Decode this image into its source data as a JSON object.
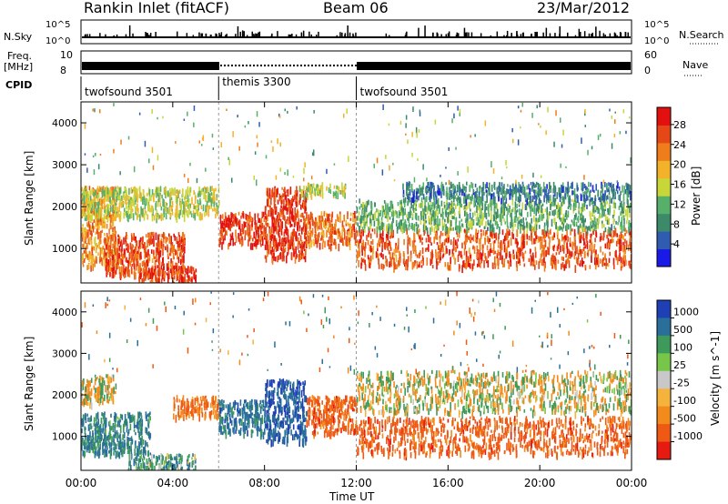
{
  "header": {
    "station": "Rankin Inlet (fitACF)",
    "beam": "Beam 06",
    "date": "23/Mar/2012"
  },
  "info_panels": {
    "nsky_label": "N.Sky",
    "nsky_top": "10^5",
    "nsky_bottom": "10^0",
    "nsearch_label": "N.Search",
    "nsearch_top": "10^5",
    "nsearch_bottom": "10^0",
    "freq_label": "Freq.",
    "freq_unit": "[MHz]",
    "freq_top": "10",
    "freq_bottom": "8",
    "nave_label": "Nave",
    "nave_top": "60",
    "nave_bottom": "0",
    "cpid_label": "CPID",
    "cpid_segments": [
      {
        "name": "twofsound 3501",
        "start_h": 0,
        "end_h": 6
      },
      {
        "name": "themis 3300",
        "start_h": 6,
        "end_h": 12
      },
      {
        "name": "twofsound 3501",
        "start_h": 12,
        "end_h": 24
      }
    ]
  },
  "axes": {
    "ylabel": "Slant Range [km]",
    "xlabel": "Time UT",
    "x_ticks": [
      "00:00",
      "04:00",
      "08:00",
      "12:00",
      "16:00",
      "20:00",
      "00:00"
    ],
    "y_ticks": [
      "1000",
      "2000",
      "3000",
      "4000"
    ]
  },
  "colorbars": {
    "power": {
      "label": "Power [dB]",
      "ticks": [
        "4",
        "8",
        "12",
        "16",
        "20",
        "24",
        "28"
      ],
      "colors": [
        "#1a1ae6",
        "#2f5bb0",
        "#3d8a6b",
        "#57b06a",
        "#c8d639",
        "#f2b32a",
        "#f07d1c",
        "#e54717",
        "#e31010"
      ]
    },
    "velocity": {
      "label": "Velocity [m s^-1]",
      "ticks": [
        "1000",
        "500",
        "100",
        "25",
        "-25",
        "-100",
        "-500",
        "-1000"
      ],
      "colors": [
        "#1f3fb5",
        "#2a6f9a",
        "#3d9a5a",
        "#77c64a",
        "#c8c8c8",
        "#f5b23c",
        "#f28a1c",
        "#ee5a14",
        "#e61a10"
      ]
    }
  },
  "chart_data": {
    "type": "heatmap",
    "x_range_hours": [
      0,
      24
    ],
    "y_range_km": [
      180,
      4500
    ],
    "mode_change_markers_h": [
      6,
      12
    ],
    "power_panel": {
      "variable": "Power",
      "units": "dB",
      "scale_range": [
        0,
        32
      ],
      "regions": [
        {
          "t0": 0.0,
          "t1": 1.5,
          "r0": 600,
          "r1": 2500,
          "db": 22
        },
        {
          "t0": 1.0,
          "t1": 4.5,
          "r0": 400,
          "r1": 1400,
          "db": 26
        },
        {
          "t0": 2.5,
          "t1": 5.0,
          "r0": 200,
          "r1": 600,
          "db": 27
        },
        {
          "t0": 0.0,
          "t1": 6.0,
          "r0": 1800,
          "r1": 2500,
          "db": 16
        },
        {
          "t0": 6.0,
          "t1": 8.0,
          "r0": 1100,
          "r1": 1900,
          "db": 28
        },
        {
          "t0": 8.0,
          "t1": 9.8,
          "r0": 800,
          "r1": 2500,
          "db": 28
        },
        {
          "t0": 9.8,
          "t1": 12.0,
          "r0": 1100,
          "r1": 1900,
          "db": 24
        },
        {
          "t0": 9.5,
          "t1": 11.5,
          "r0": 2300,
          "r1": 2600,
          "db": 16
        },
        {
          "t0": 12.0,
          "t1": 24.0,
          "r0": 600,
          "r1": 1500,
          "db": 26
        },
        {
          "t0": 12.0,
          "t1": 24.0,
          "r0": 1500,
          "r1": 2200,
          "db": 12
        },
        {
          "t0": 14.0,
          "t1": 24.0,
          "r0": 2200,
          "r1": 2600,
          "db": 8
        }
      ]
    },
    "velocity_panel": {
      "variable": "Velocity",
      "units": "m s^-1",
      "scale_range": [
        -1000,
        1000
      ],
      "regions": [
        {
          "t0": 0.0,
          "t1": 1.5,
          "r0": 1800,
          "r1": 2500,
          "vel": 0
        },
        {
          "t0": 0.0,
          "t1": 3.0,
          "r0": 600,
          "r1": 1600,
          "vel": 300
        },
        {
          "t0": 2.0,
          "t1": 5.0,
          "r0": 200,
          "r1": 600,
          "vel": 200
        },
        {
          "t0": 4.0,
          "t1": 6.0,
          "r0": 1500,
          "r1": 2000,
          "vel": -300
        },
        {
          "t0": 6.0,
          "t1": 8.0,
          "r0": 1100,
          "r1": 1900,
          "vel": 400
        },
        {
          "t0": 8.0,
          "t1": 9.8,
          "r0": 900,
          "r1": 2400,
          "vel": 600
        },
        {
          "t0": 9.8,
          "t1": 12.0,
          "r0": 1100,
          "r1": 2000,
          "vel": -400
        },
        {
          "t0": 12.0,
          "t1": 24.0,
          "r0": 600,
          "r1": 1500,
          "vel": -400
        },
        {
          "t0": 12.0,
          "t1": 24.0,
          "r0": 1600,
          "r1": 2600,
          "vel": 0
        }
      ]
    }
  }
}
